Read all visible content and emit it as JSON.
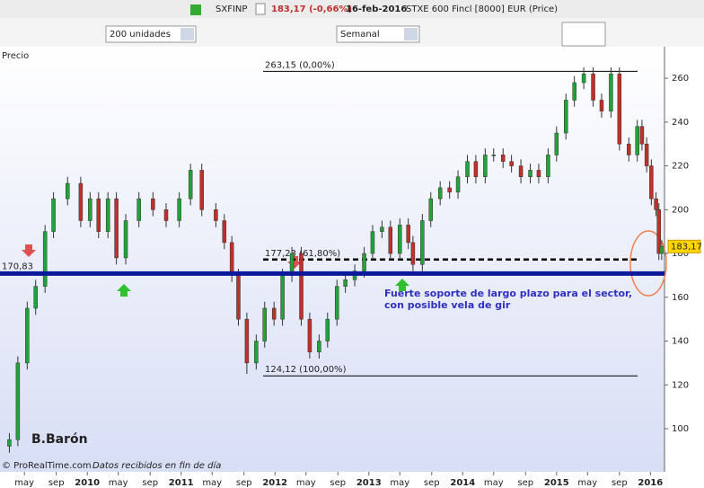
{
  "header": {
    "symbol": "SXFINP",
    "quote": "183,17 (-0,66%)",
    "date": "16-feb-2016",
    "instrument": "STXE 600 Fincl [8000] EUR (Price)"
  },
  "toolbar": {
    "units": "200 unidades",
    "period": "Semanal"
  },
  "panel_label": "Precio",
  "chart_data": {
    "type": "candlestick",
    "x": [
      2009.17,
      2009.26,
      2009.36,
      2009.45,
      2009.55,
      2009.64,
      2009.79,
      2009.93,
      2010.03,
      2010.12,
      2010.22,
      2010.31,
      2010.41,
      2010.55,
      2010.7,
      2010.84,
      2010.98,
      2011.1,
      2011.22,
      2011.37,
      2011.46,
      2011.54,
      2011.61,
      2011.7,
      2011.8,
      2011.89,
      2011.99,
      2012.08,
      2012.18,
      2012.28,
      2012.37,
      2012.47,
      2012.56,
      2012.66,
      2012.75,
      2012.85,
      2012.95,
      2013.04,
      2013.14,
      2013.23,
      2013.33,
      2013.42,
      2013.47,
      2013.57,
      2013.66,
      2013.76,
      2013.86,
      2013.95,
      2014.05,
      2014.14,
      2014.24,
      2014.33,
      2014.43,
      2014.52,
      2014.62,
      2014.72,
      2014.81,
      2014.91,
      2015.0,
      2015.1,
      2015.19,
      2015.29,
      2015.39,
      2015.48,
      2015.58,
      2015.67,
      2015.77,
      2015.86,
      2015.91,
      2015.96,
      2016.01,
      2016.06,
      2016.09,
      2016.12
    ],
    "open": [
      92,
      95,
      130,
      155,
      165,
      190,
      205,
      212,
      195,
      205,
      190,
      205,
      178,
      195,
      205,
      200,
      195,
      205,
      218,
      200,
      195,
      185,
      170,
      150,
      130,
      140,
      155,
      150,
      170,
      180,
      150,
      135,
      140,
      150,
      165,
      168,
      172,
      180,
      190,
      192,
      180,
      193,
      185,
      175,
      195,
      205,
      210,
      208,
      215,
      222,
      215,
      225,
      225,
      222,
      220,
      215,
      218,
      215,
      225,
      235,
      250,
      258,
      262,
      250,
      245,
      262,
      230,
      225,
      238,
      230,
      220,
      205,
      200,
      180
    ],
    "high": [
      98,
      133,
      158,
      168,
      193,
      208,
      215,
      215,
      208,
      208,
      208,
      208,
      198,
      208,
      208,
      203,
      208,
      221,
      221,
      203,
      198,
      188,
      173,
      153,
      143,
      158,
      158,
      173,
      183,
      183,
      153,
      143,
      153,
      168,
      171,
      175,
      183,
      193,
      195,
      195,
      196,
      196,
      188,
      198,
      208,
      213,
      213,
      218,
      225,
      225,
      228,
      228,
      228,
      225,
      223,
      221,
      221,
      228,
      238,
      253,
      261,
      265,
      265,
      253,
      265,
      265,
      233,
      241,
      241,
      233,
      223,
      208,
      203,
      186
    ],
    "low": [
      89,
      92,
      127,
      152,
      162,
      187,
      202,
      192,
      192,
      187,
      187,
      175,
      175,
      192,
      197,
      192,
      192,
      202,
      197,
      192,
      182,
      167,
      147,
      125,
      127,
      137,
      147,
      147,
      167,
      147,
      132,
      132,
      137,
      147,
      162,
      165,
      169,
      177,
      187,
      177,
      177,
      182,
      172,
      172,
      192,
      202,
      205,
      205,
      212,
      212,
      212,
      222,
      219,
      217,
      212,
      212,
      212,
      212,
      222,
      232,
      247,
      255,
      247,
      242,
      242,
      227,
      222,
      222,
      227,
      217,
      202,
      197,
      177,
      177
    ],
    "close": [
      95,
      130,
      155,
      165,
      190,
      205,
      212,
      195,
      205,
      190,
      205,
      178,
      195,
      205,
      200,
      195,
      205,
      218,
      200,
      195,
      185,
      170,
      150,
      130,
      140,
      155,
      150,
      170,
      180,
      150,
      135,
      140,
      150,
      165,
      168,
      172,
      180,
      190,
      192,
      180,
      193,
      185,
      175,
      195,
      205,
      210,
      208,
      215,
      222,
      215,
      225,
      225,
      222,
      220,
      215,
      218,
      215,
      225,
      235,
      250,
      258,
      262,
      250,
      245,
      262,
      230,
      225,
      238,
      230,
      220,
      205,
      200,
      180,
      183.17
    ],
    "up_color": "#22a33a",
    "down_color": "#c0302a",
    "xlim": [
      2009.07,
      2016.15
    ],
    "xticks": [
      {
        "value": 2009.33,
        "label": "may"
      },
      {
        "value": 2009.67,
        "label": "sep"
      },
      2010,
      {
        "value": 2010.33,
        "label": "may"
      },
      {
        "value": 2010.67,
        "label": "sep"
      },
      2011,
      {
        "value": 2011.33,
        "label": "may"
      },
      {
        "value": 2011.67,
        "label": "sep"
      },
      2012,
      {
        "value": 2012.33,
        "label": "may"
      },
      {
        "value": 2012.67,
        "label": "sep"
      },
      2013,
      {
        "value": 2013.33,
        "label": "may"
      },
      {
        "value": 2013.67,
        "label": "sep"
      },
      2014,
      {
        "value": 2014.33,
        "label": "may"
      },
      {
        "value": 2014.67,
        "label": "sep"
      },
      2015,
      {
        "value": 2015.33,
        "label": "may"
      },
      {
        "value": 2015.67,
        "label": "sep"
      },
      2016
    ],
    "ylim": [
      80.3,
      274.4
    ],
    "yticks": [
      100,
      120,
      140,
      160,
      180,
      200,
      220,
      240,
      260
    ],
    "fib_levels": [
      {
        "value": 263.15,
        "label": "263,15 (0,00%)"
      },
      {
        "value": 177.23,
        "label": "177,23 (61,80%)"
      },
      {
        "value": 124.12,
        "label": "124,12 (100,00%)"
      }
    ],
    "support": {
      "value": 170.83,
      "label": "170,83"
    },
    "last_price": {
      "value": 183.17,
      "label": "183,17"
    },
    "annotation": [
      "Fuerte soporte de largo plazo para el sector,",
      "con posible vela de gir"
    ],
    "author": "B.Barón"
  },
  "footer": {
    "brand": "© ProRealTime.com",
    "note": "Datos recibidos en fin de día"
  }
}
